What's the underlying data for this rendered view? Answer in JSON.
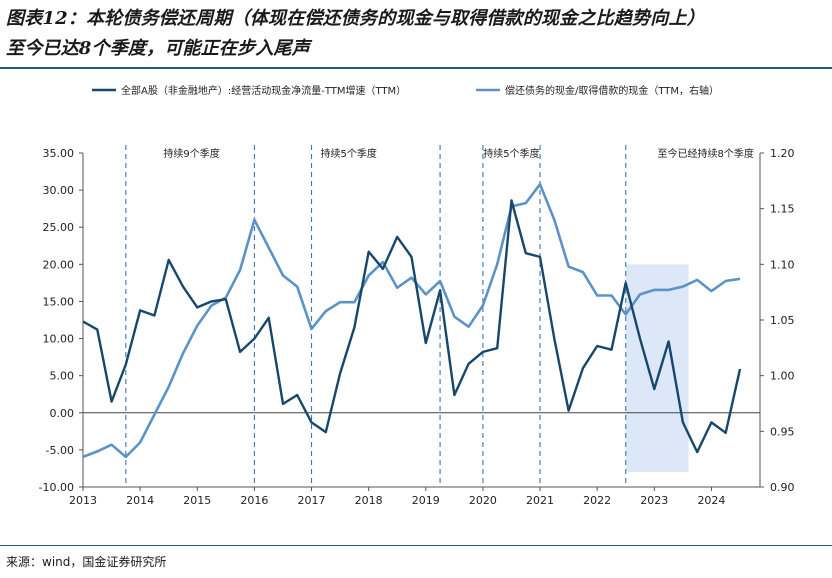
{
  "title": {
    "line1": "图表12：本轮债务偿还周期（体现在偿还债务的现金与取得借款的现金之比趋势向上）",
    "line2": "至今已达8个季度，可能正在步入尾声"
  },
  "source": "来源：wind，国金证券研究所",
  "colors": {
    "series1": "#17476b",
    "series2": "#5b93c8",
    "divider": "#3f72b8",
    "shade": "#dce8f7",
    "rule": "#1f5a85"
  },
  "chart_data": {
    "type": "line",
    "legend_position": "top",
    "x_labels": [
      "2013",
      "2014",
      "2015",
      "2016",
      "2017",
      "2018",
      "2019",
      "2020",
      "2021",
      "2022",
      "2023",
      "2024"
    ],
    "x_domain": [
      2013.0,
      2024.85
    ],
    "y_left": {
      "ticks": [
        "35.00",
        "30.00",
        "25.00",
        "20.00",
        "15.00",
        "10.00",
        "5.00",
        "0.00",
        "-5.00",
        "-10.00"
      ],
      "range": [
        -10,
        35
      ]
    },
    "y_right": {
      "ticks": [
        "1.20",
        "1.15",
        "1.10",
        "1.05",
        "1.00",
        "0.95",
        "0.90"
      ],
      "range": [
        0.9,
        1.2
      ]
    },
    "series": [
      {
        "name": "全部A股（非金融地产）:经营活动现金净流量-TTM增速（TTM）",
        "axis": "left",
        "x": [
          2013.0,
          2013.25,
          2013.5,
          2013.75,
          2014.0,
          2014.25,
          2014.5,
          2014.75,
          2015.0,
          2015.25,
          2015.5,
          2015.75,
          2016.0,
          2016.25,
          2016.5,
          2016.75,
          2017.0,
          2017.25,
          2017.5,
          2017.75,
          2018.0,
          2018.25,
          2018.5,
          2018.75,
          2019.0,
          2019.25,
          2019.5,
          2019.75,
          2020.0,
          2020.25,
          2020.5,
          2020.75,
          2021.0,
          2021.25,
          2021.5,
          2021.75,
          2022.0,
          2022.25,
          2022.5,
          2022.75,
          2023.0,
          2023.25,
          2023.5,
          2023.75,
          2024.0,
          2024.25,
          2024.5
        ],
        "values": [
          12.3,
          11.2,
          1.5,
          6.5,
          13.8,
          13.1,
          20.6,
          17.0,
          14.2,
          15.0,
          15.3,
          8.2,
          10.0,
          12.8,
          1.2,
          2.4,
          -1.3,
          -2.6,
          5.3,
          11.5,
          21.7,
          19.4,
          23.7,
          21.0,
          9.4,
          16.5,
          2.4,
          6.6,
          8.2,
          8.7,
          28.6,
          21.5,
          21.0,
          10.0,
          0.3,
          6.0,
          9.0,
          8.5,
          17.5,
          10.0,
          3.2,
          9.6,
          -1.3,
          -5.3,
          -1.3,
          -2.7,
          5.9
        ]
      },
      {
        "name": "偿还债务的现金/取得借款的现金（TTM，右轴）",
        "axis": "right",
        "x": [
          2013.0,
          2013.25,
          2013.5,
          2013.75,
          2014.0,
          2014.25,
          2014.5,
          2014.75,
          2015.0,
          2015.25,
          2015.5,
          2015.75,
          2016.0,
          2016.25,
          2016.5,
          2016.75,
          2017.0,
          2017.25,
          2017.5,
          2017.75,
          2018.0,
          2018.25,
          2018.5,
          2018.75,
          2019.0,
          2019.25,
          2019.5,
          2019.75,
          2020.0,
          2020.25,
          2020.5,
          2020.75,
          2021.0,
          2021.25,
          2021.5,
          2021.75,
          2022.0,
          2022.25,
          2022.5,
          2022.75,
          2023.0,
          2023.25,
          2023.5,
          2023.75,
          2024.0,
          2024.25,
          2024.5
        ],
        "values": [
          0.927,
          0.932,
          0.938,
          0.927,
          0.94,
          0.965,
          0.99,
          1.02,
          1.045,
          1.063,
          1.07,
          1.095,
          1.14,
          1.115,
          1.09,
          1.08,
          1.042,
          1.058,
          1.066,
          1.066,
          1.09,
          1.102,
          1.079,
          1.088,
          1.073,
          1.085,
          1.053,
          1.044,
          1.063,
          1.1,
          1.152,
          1.155,
          1.172,
          1.14,
          1.098,
          1.093,
          1.072,
          1.072,
          1.055,
          1.073,
          1.077,
          1.077,
          1.08,
          1.086,
          1.076,
          1.085,
          1.087
        ]
      }
    ],
    "annotations": [
      {
        "text": "持续9个季度",
        "x": 2014.9
      },
      {
        "text": "持续5个季度",
        "x": 2017.65
      },
      {
        "text": "持续5个季度",
        "x": 2020.5
      },
      {
        "text": "至今已经持续8个季度",
        "x": 2023.9
      }
    ],
    "dividers": [
      2013.75,
      2016.0,
      2017.0,
      2019.25,
      2020.0,
      2021.0,
      2022.5
    ],
    "shaded": {
      "x_start": 2022.5,
      "x_end": 2023.6,
      "y_top": 20.0,
      "y_bottom": -8.0
    }
  }
}
